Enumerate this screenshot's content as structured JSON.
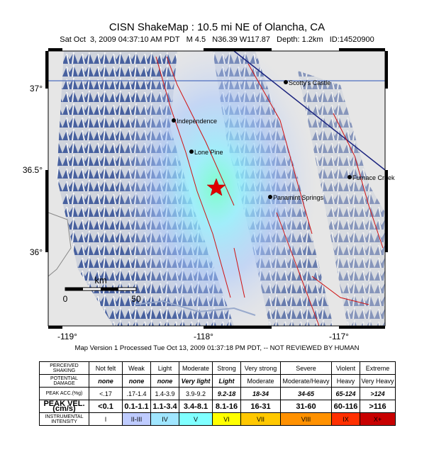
{
  "title": "CISN ShakeMap : 10.5 mi NE of Olancha, CA",
  "subtitle": "Sat Oct  3, 2009 04:37:10 AM PDT   M 4.5   N36.39 W117.87   Depth: 1.2km   ID:14520900",
  "map": {
    "lat_labels": [
      "37°",
      "36.5°",
      "36°"
    ],
    "lon_labels": [
      "-119°",
      "-118°",
      "-117°"
    ],
    "places": [
      "Scotty's Castle",
      "Independence",
      "Lone Pine",
      "Panamint Springs",
      "Furnace Creek"
    ],
    "scale": {
      "unit": "km",
      "ticks": [
        "0",
        "50"
      ]
    }
  },
  "footer": "Map Version 1 Processed Tue Oct 13, 2009 01:37:18 PM PDT, -- NOT REVIEWED BY HUMAN",
  "table": {
    "rows": [
      [
        "PERCEIVED SHAKING",
        "Not felt",
        "Weak",
        "Light",
        "Moderate",
        "Strong",
        "Very strong",
        "Severe",
        "Violent",
        "Extreme"
      ],
      [
        "POTENTIAL DAMAGE",
        "none",
        "none",
        "none",
        "Very light",
        "Light",
        "Moderate",
        "Moderate/Heavy",
        "Heavy",
        "Very Heavy"
      ],
      [
        "PEAK ACC.(%g)",
        "<.17",
        ".17-1.4",
        "1.4-3.9",
        "3.9-9.2",
        "9.2-18",
        "18-34",
        "34-65",
        "65-124",
        ">124"
      ],
      [
        "PEAK VEL.(cm/s)",
        "<0.1",
        "0.1-1.1",
        "1.1-3.4",
        "3.4-8.1",
        "8.1-16",
        "16-31",
        "31-60",
        "60-116",
        ">116"
      ],
      [
        "INSTRUMENTAL INTENSITY",
        "I",
        "II-III",
        "IV",
        "V",
        "VI",
        "VII",
        "VIII",
        "IX",
        "X+"
      ]
    ]
  }
}
